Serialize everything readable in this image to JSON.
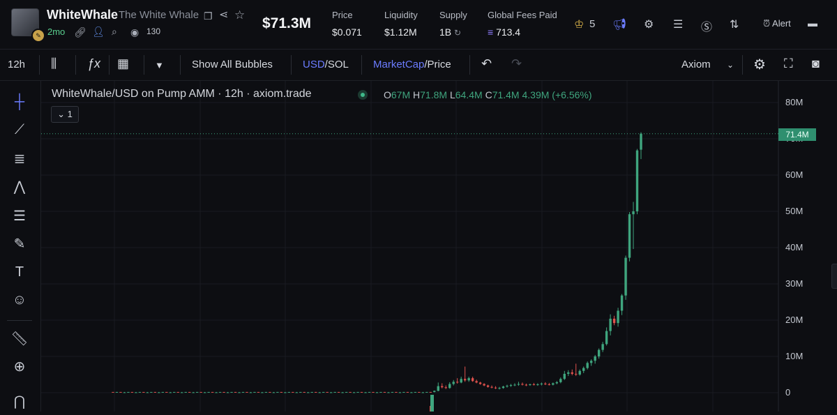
{
  "token": {
    "ticker": "WhiteWhale",
    "name": "The White Whale",
    "age": "2mo",
    "views": "130",
    "market_cap": "$71.3M"
  },
  "stats": [
    {
      "label": "Price",
      "value": "$0.071"
    },
    {
      "label": "Liquidity",
      "value": "$1.12M"
    },
    {
      "label": "Supply",
      "value": "1B"
    },
    {
      "label": "Global Fees Paid",
      "value": "713.4"
    }
  ],
  "header_actions": {
    "crown_count": "5",
    "alert_label": "Alert"
  },
  "toolbar": {
    "interval": "12h",
    "bubbles_label": "Show All Bubbles",
    "currency_primary": "USD",
    "currency_secondary": "/SOL",
    "mode_primary": "MarketCap",
    "mode_secondary": "/Price",
    "layout_name": "Axiom"
  },
  "chart_legend": {
    "title": "WhiteWhale/USD on Pump AMM · 12h · axiom.trade",
    "o_label": "O",
    "o_value": "67M",
    "h_label": "H",
    "h_value": "71.8M",
    "l_label": "L",
    "l_value": "64.4M",
    "c_label": "C",
    "c_value": "71.4M",
    "change": "4.39M (+6.56%)",
    "collapse_count": "1"
  },
  "chart_data": {
    "type": "candlestick",
    "title": "",
    "xlabel": "",
    "ylabel": "",
    "y_unit": "M",
    "ylim": [
      -2,
      86
    ],
    "y_ticks": [
      "80M",
      "70M",
      "60M",
      "50M",
      "40M",
      "30M",
      "20M",
      "10M",
      "0"
    ],
    "last_price_label": "71.4M",
    "candles": [
      [
        0.2,
        0.2,
        0.1,
        0.1
      ],
      [
        0.1,
        0.2,
        0.1,
        0.2
      ],
      [
        0.2,
        0.2,
        0.1,
        0.1
      ],
      [
        0.1,
        0.2,
        0.1,
        0.1
      ],
      [
        0.1,
        0.2,
        0.1,
        0.2
      ],
      [
        0.2,
        0.2,
        0.1,
        0.1
      ],
      [
        0.1,
        0.2,
        0.1,
        0.1
      ],
      [
        0.1,
        0.2,
        0.1,
        0.2
      ],
      [
        0.2,
        0.2,
        0.1,
        0.1
      ],
      [
        0.1,
        0.2,
        0.1,
        0.1
      ],
      [
        0.1,
        0.2,
        0.1,
        0.2
      ],
      [
        0.2,
        0.2,
        0.1,
        0.1
      ],
      [
        0.1,
        0.2,
        0.1,
        0.1
      ],
      [
        0.1,
        0.2,
        0.1,
        0.2
      ],
      [
        0.2,
        0.2,
        0.1,
        0.1
      ],
      [
        0.1,
        0.2,
        0.1,
        0.1
      ],
      [
        0.1,
        0.2,
        0.1,
        0.2
      ],
      [
        0.2,
        0.2,
        0.1,
        0.1
      ],
      [
        0.1,
        0.2,
        0.1,
        0.1
      ],
      [
        0.1,
        0.2,
        0.1,
        0.2
      ],
      [
        0.2,
        0.2,
        0.1,
        0.1
      ],
      [
        0.1,
        0.2,
        0.1,
        0.1
      ],
      [
        0.1,
        0.2,
        0.1,
        0.2
      ],
      [
        0.2,
        0.2,
        0.1,
        0.1
      ],
      [
        0.1,
        0.2,
        0.1,
        0.1
      ],
      [
        0.1,
        0.2,
        0.1,
        0.2
      ],
      [
        0.2,
        0.2,
        0.1,
        0.1
      ],
      [
        0.1,
        0.2,
        0.1,
        0.1
      ],
      [
        0.1,
        0.2,
        0.1,
        0.2
      ],
      [
        0.2,
        0.2,
        0.1,
        0.1
      ],
      [
        0.1,
        0.2,
        0.1,
        0.1
      ],
      [
        0.1,
        0.2,
        0.1,
        0.2
      ],
      [
        0.2,
        0.2,
        0.1,
        0.1
      ],
      [
        0.1,
        0.2,
        0.1,
        0.1
      ],
      [
        0.1,
        0.2,
        0.1,
        0.2
      ],
      [
        0.2,
        0.2,
        0.1,
        0.1
      ],
      [
        0.1,
        0.2,
        0.1,
        0.1
      ],
      [
        0.1,
        0.2,
        0.1,
        0.2
      ],
      [
        0.2,
        0.2,
        0.1,
        0.1
      ],
      [
        0.1,
        0.2,
        0.1,
        0.1
      ],
      [
        0.1,
        0.2,
        0.1,
        0.2
      ],
      [
        0.2,
        0.2,
        0.1,
        0.1
      ],
      [
        0.1,
        0.2,
        0.1,
        0.1
      ],
      [
        0.1,
        0.2,
        0.1,
        0.2
      ],
      [
        0.2,
        0.2,
        0.1,
        0.1
      ],
      [
        0.1,
        0.2,
        0.1,
        0.1
      ],
      [
        0.1,
        0.2,
        0.1,
        0.2
      ],
      [
        0.2,
        0.2,
        0.1,
        0.1
      ],
      [
        0.1,
        0.2,
        0.1,
        0.1
      ],
      [
        0.1,
        0.2,
        0.1,
        0.2
      ],
      [
        0.2,
        0.2,
        0.1,
        0.1
      ],
      [
        0.1,
        0.2,
        0.1,
        0.1
      ],
      [
        0.1,
        0.2,
        0.1,
        0.2
      ],
      [
        0.2,
        0.2,
        0.1,
        0.1
      ],
      [
        0.1,
        0.2,
        0.1,
        0.1
      ],
      [
        0.1,
        0.2,
        0.1,
        0.2
      ],
      [
        0.2,
        0.2,
        0.1,
        0.1
      ],
      [
        0.1,
        0.2,
        0.1,
        0.1
      ],
      [
        0.1,
        0.2,
        0.1,
        0.2
      ],
      [
        0.2,
        0.2,
        0.1,
        0.1
      ],
      [
        0.1,
        0.2,
        0.1,
        0.1
      ],
      [
        0.1,
        0.2,
        0.1,
        0.2
      ],
      [
        0.2,
        0.2,
        0.1,
        0.1
      ],
      [
        0.1,
        0.2,
        0.1,
        0.1
      ],
      [
        0.1,
        0.2,
        0.1,
        0.2
      ],
      [
        0.2,
        0.2,
        0.1,
        0.1
      ],
      [
        0.1,
        0.2,
        0.1,
        0.1
      ],
      [
        0.1,
        0.2,
        0.1,
        0.2
      ],
      [
        0.2,
        0.2,
        0.1,
        0.1
      ],
      [
        0.1,
        0.2,
        0.1,
        0.1
      ],
      [
        0.1,
        0.2,
        0.1,
        0.2
      ],
      [
        0.2,
        0.2,
        0.1,
        0.1
      ],
      [
        0.1,
        0.2,
        0.1,
        0.1
      ],
      [
        0.1,
        0.2,
        0.1,
        0.2
      ],
      [
        0.2,
        0.2,
        0.1,
        0.1
      ],
      [
        0.1,
        0.2,
        0.1,
        0.1
      ],
      [
        0.1,
        0.2,
        0.1,
        0.2
      ],
      [
        0.2,
        0.2,
        0.1,
        0.1
      ],
      [
        0.1,
        0.2,
        0.1,
        0.1
      ],
      [
        0.1,
        0.2,
        0.1,
        0.2
      ],
      [
        0.2,
        0.2,
        0.1,
        0.1
      ],
      [
        0.1,
        0.2,
        0.1,
        0.1
      ],
      [
        0.1,
        0.2,
        0.1,
        0.2
      ],
      [
        0.2,
        0.2,
        0.1,
        0.1
      ],
      [
        0.2,
        0.6,
        0.1,
        0.5
      ],
      [
        0.5,
        2.8,
        0.4,
        1.8
      ],
      [
        1.8,
        2.6,
        1.2,
        1.5
      ],
      [
        1.5,
        2.0,
        1.0,
        1.3
      ],
      [
        1.3,
        2.9,
        1.1,
        2.4
      ],
      [
        2.4,
        3.5,
        2.0,
        3.0
      ],
      [
        3.0,
        4.0,
        2.5,
        2.8
      ],
      [
        2.8,
        4.4,
        2.6,
        3.8
      ],
      [
        3.8,
        7.2,
        3.0,
        3.4
      ],
      [
        3.4,
        4.4,
        3.0,
        4.0
      ],
      [
        4.0,
        4.4,
        3.0,
        3.2
      ],
      [
        3.2,
        3.6,
        2.6,
        2.8
      ],
      [
        2.8,
        3.0,
        2.2,
        2.4
      ],
      [
        2.4,
        2.6,
        1.8,
        2.0
      ],
      [
        2.0,
        2.2,
        1.4,
        1.6
      ],
      [
        1.6,
        2.0,
        1.2,
        1.4
      ],
      [
        1.4,
        1.8,
        1.0,
        1.2
      ],
      [
        1.2,
        1.6,
        0.9,
        1.3
      ],
      [
        1.3,
        1.9,
        1.1,
        1.7
      ],
      [
        1.7,
        2.2,
        1.4,
        1.9
      ],
      [
        1.9,
        2.4,
        1.6,
        2.1
      ],
      [
        2.1,
        2.6,
        1.8,
        2.2
      ],
      [
        2.2,
        3.0,
        1.9,
        2.4
      ],
      [
        2.4,
        2.8,
        2.0,
        2.2
      ],
      [
        2.2,
        2.5,
        1.8,
        2.1
      ],
      [
        2.1,
        2.5,
        1.9,
        2.3
      ],
      [
        2.3,
        2.7,
        2.0,
        2.2
      ],
      [
        2.2,
        2.6,
        1.9,
        2.3
      ],
      [
        2.3,
        2.8,
        2.0,
        2.5
      ],
      [
        2.5,
        2.9,
        2.1,
        2.3
      ],
      [
        2.3,
        2.7,
        2.0,
        2.2
      ],
      [
        2.2,
        2.8,
        2.0,
        2.6
      ],
      [
        2.6,
        3.2,
        2.3,
        2.9
      ],
      [
        2.9,
        4.2,
        2.6,
        3.8
      ],
      [
        3.8,
        6.0,
        3.5,
        5.2
      ],
      [
        5.2,
        6.2,
        4.6,
        5.6
      ],
      [
        5.6,
        6.4,
        4.8,
        5.2
      ],
      [
        5.2,
        8.0,
        4.6,
        5.0
      ],
      [
        5.0,
        6.4,
        4.7,
        6.0
      ],
      [
        6.0,
        7.2,
        5.4,
        6.8
      ],
      [
        6.8,
        8.6,
        6.4,
        8.2
      ],
      [
        8.2,
        9.2,
        7.4,
        8.8
      ],
      [
        8.8,
        10.4,
        8.0,
        10.0
      ],
      [
        10.0,
        12.2,
        9.4,
        11.8
      ],
      [
        11.8,
        14.0,
        11.2,
        13.4
      ],
      [
        13.4,
        18.0,
        13.0,
        17.0
      ],
      [
        17.0,
        21.6,
        15.8,
        20.4
      ],
      [
        20.4,
        21.2,
        18.6,
        19.2
      ],
      [
        19.2,
        23.4,
        18.2,
        22.6
      ],
      [
        22.6,
        27.2,
        21.4,
        26.8
      ],
      [
        26.8,
        37.8,
        25.6,
        37.2
      ],
      [
        37.2,
        49.8,
        36.2,
        49.2
      ],
      [
        49.2,
        52.6,
        39.6,
        50.0
      ],
      [
        50.0,
        67.2,
        49.2,
        66.8
      ],
      [
        67.0,
        71.8,
        64.4,
        71.4
      ]
    ]
  },
  "colors": {
    "up": "#3fa57e",
    "down": "#e0524d",
    "accent": "#6b7cff",
    "background": "#0d0e12"
  }
}
